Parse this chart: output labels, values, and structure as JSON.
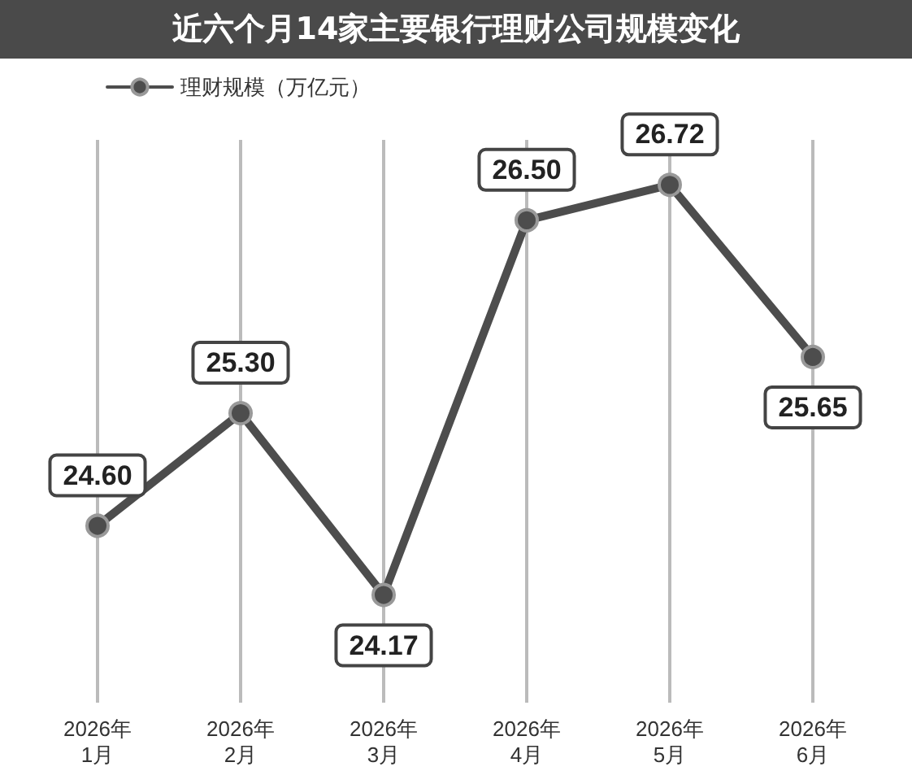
{
  "chart_data": {
    "type": "line",
    "title": "近六个月14家主要银行理财公司规模变化",
    "categories": [
      "2026年\n1月",
      "2026年\n2月",
      "2026年\n3月",
      "2026年\n4月",
      "2026年\n5月",
      "2026年\n6月"
    ],
    "series": [
      {
        "name": "理财规模（万亿元）",
        "color": "#4d4d4d",
        "values": [
          24.6,
          25.3,
          24.17,
          26.5,
          26.72,
          25.65
        ],
        "value_labels": [
          "24.60",
          "25.30",
          "24.17",
          "26.50",
          "26.72",
          "25.65"
        ]
      }
    ],
    "marker": "circle",
    "legend": "top left",
    "grid": "x"
  }
}
